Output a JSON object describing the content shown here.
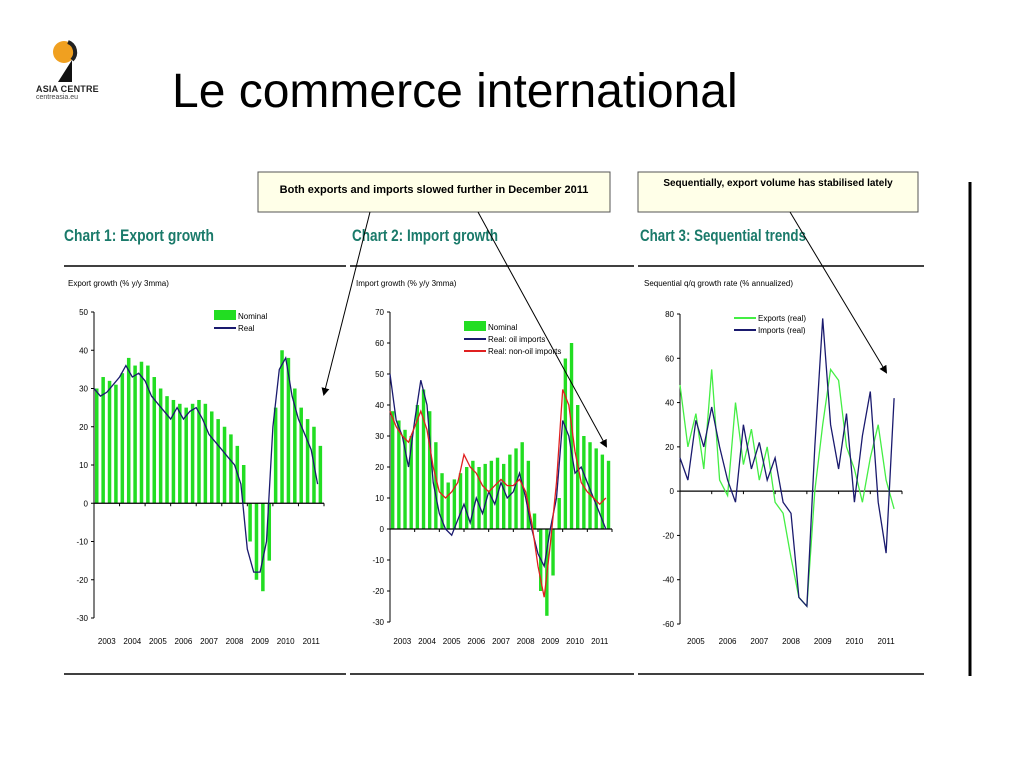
{
  "slide": {
    "title": "Le commerce international",
    "logo_text": "ASIA CENTRE",
    "logo_sub": "centreasia.eu"
  },
  "callouts": [
    {
      "text": "Both exports and imports slowed further in December 2011"
    },
    {
      "text": "Sequentially, export volume has stabilised lately"
    }
  ],
  "chart_data": [
    {
      "type": "bar",
      "title": "Chart 1: Export growth",
      "subtitle": "Export growth (% y/y 3mma)",
      "ylim": [
        -30,
        50
      ],
      "yticks": [
        50,
        40,
        30,
        20,
        10,
        0,
        -10,
        -20,
        -30
      ],
      "xticks": [
        "2003",
        "2004",
        "2005",
        "2006",
        "2007",
        "2008",
        "2009",
        "2010",
        "2011"
      ],
      "x_range": [
        2003,
        2012
      ],
      "legend": {
        "placement": "top-right"
      },
      "series": [
        {
          "name": "Nominal",
          "style": "bar",
          "color": "#22dd22",
          "points": [
            [
              2003.0,
              30
            ],
            [
              2003.25,
              33
            ],
            [
              2003.5,
              32
            ],
            [
              2003.75,
              31
            ],
            [
              2004.0,
              34
            ],
            [
              2004.25,
              38
            ],
            [
              2004.5,
              36
            ],
            [
              2004.75,
              37
            ],
            [
              2005.0,
              36
            ],
            [
              2005.25,
              33
            ],
            [
              2005.5,
              30
            ],
            [
              2005.75,
              28
            ],
            [
              2006.0,
              27
            ],
            [
              2006.25,
              26
            ],
            [
              2006.5,
              25
            ],
            [
              2006.75,
              26
            ],
            [
              2007.0,
              27
            ],
            [
              2007.25,
              26
            ],
            [
              2007.5,
              24
            ],
            [
              2007.75,
              22
            ],
            [
              2008.0,
              20
            ],
            [
              2008.25,
              18
            ],
            [
              2008.5,
              15
            ],
            [
              2008.75,
              10
            ],
            [
              2009.0,
              -10
            ],
            [
              2009.25,
              -20
            ],
            [
              2009.5,
              -23
            ],
            [
              2009.75,
              -15
            ],
            [
              2010.0,
              25
            ],
            [
              2010.25,
              40
            ],
            [
              2010.5,
              38
            ],
            [
              2010.75,
              30
            ],
            [
              2011.0,
              25
            ],
            [
              2011.25,
              22
            ],
            [
              2011.5,
              20
            ],
            [
              2011.75,
              15
            ]
          ]
        },
        {
          "name": "Real",
          "style": "line",
          "color": "#1a1a6e",
          "points": [
            [
              2003.0,
              30
            ],
            [
              2003.25,
              28
            ],
            [
              2003.5,
              29
            ],
            [
              2003.75,
              31
            ],
            [
              2004.0,
              33
            ],
            [
              2004.25,
              36
            ],
            [
              2004.5,
              33
            ],
            [
              2004.75,
              34
            ],
            [
              2005.0,
              32
            ],
            [
              2005.25,
              28
            ],
            [
              2005.5,
              26
            ],
            [
              2005.75,
              24
            ],
            [
              2006.0,
              22
            ],
            [
              2006.25,
              25
            ],
            [
              2006.5,
              22
            ],
            [
              2006.75,
              24
            ],
            [
              2007.0,
              25
            ],
            [
              2007.25,
              22
            ],
            [
              2007.5,
              18
            ],
            [
              2007.75,
              16
            ],
            [
              2008.0,
              14
            ],
            [
              2008.25,
              12
            ],
            [
              2008.5,
              10
            ],
            [
              2008.75,
              5
            ],
            [
              2009.0,
              -12
            ],
            [
              2009.25,
              -18
            ],
            [
              2009.5,
              -18
            ],
            [
              2009.75,
              -10
            ],
            [
              2010.0,
              20
            ],
            [
              2010.25,
              35
            ],
            [
              2010.5,
              38
            ],
            [
              2010.75,
              28
            ],
            [
              2011.0,
              22
            ],
            [
              2011.25,
              18
            ],
            [
              2011.5,
              14
            ],
            [
              2011.75,
              5
            ]
          ]
        }
      ]
    },
    {
      "type": "bar",
      "title": "Chart 2: Import growth",
      "subtitle": "Import growth (% y/y 3mma)",
      "ylim": [
        -30,
        70
      ],
      "yticks": [
        70,
        60,
        50,
        40,
        30,
        20,
        10,
        0,
        -10,
        -20,
        -30
      ],
      "xticks": [
        "2003",
        "2004",
        "2005",
        "2006",
        "2007",
        "2008",
        "2009",
        "2010",
        "2011"
      ],
      "x_range": [
        2003,
        2012
      ],
      "legend": {
        "placement": "top-right"
      },
      "series": [
        {
          "name": "Nominal",
          "style": "bar",
          "color": "#22dd22",
          "points": [
            [
              2003.0,
              38
            ],
            [
              2003.25,
              35
            ],
            [
              2003.5,
              32
            ],
            [
              2003.75,
              30
            ],
            [
              2004.0,
              40
            ],
            [
              2004.25,
              45
            ],
            [
              2004.5,
              38
            ],
            [
              2004.75,
              28
            ],
            [
              2005.0,
              18
            ],
            [
              2005.25,
              15
            ],
            [
              2005.5,
              16
            ],
            [
              2005.75,
              18
            ],
            [
              2006.0,
              20
            ],
            [
              2006.25,
              22
            ],
            [
              2006.5,
              20
            ],
            [
              2006.75,
              21
            ],
            [
              2007.0,
              22
            ],
            [
              2007.25,
              23
            ],
            [
              2007.5,
              21
            ],
            [
              2007.75,
              24
            ],
            [
              2008.0,
              26
            ],
            [
              2008.25,
              28
            ],
            [
              2008.5,
              22
            ],
            [
              2008.75,
              5
            ],
            [
              2009.0,
              -20
            ],
            [
              2009.25,
              -28
            ],
            [
              2009.5,
              -15
            ],
            [
              2009.75,
              10
            ],
            [
              2010.0,
              55
            ],
            [
              2010.25,
              60
            ],
            [
              2010.5,
              40
            ],
            [
              2010.75,
              30
            ],
            [
              2011.0,
              28
            ],
            [
              2011.25,
              26
            ],
            [
              2011.5,
              24
            ],
            [
              2011.75,
              22
            ]
          ]
        },
        {
          "name": "Real: oil imports",
          "style": "line",
          "color": "#1a1a6e",
          "points": [
            [
              2003.0,
              50
            ],
            [
              2003.25,
              35
            ],
            [
              2003.5,
              30
            ],
            [
              2003.75,
              20
            ],
            [
              2004.0,
              35
            ],
            [
              2004.25,
              48
            ],
            [
              2004.5,
              40
            ],
            [
              2004.75,
              15
            ],
            [
              2005.0,
              5
            ],
            [
              2005.25,
              0
            ],
            [
              2005.5,
              -2
            ],
            [
              2005.75,
              3
            ],
            [
              2006.0,
              8
            ],
            [
              2006.25,
              2
            ],
            [
              2006.5,
              10
            ],
            [
              2006.75,
              5
            ],
            [
              2007.0,
              12
            ],
            [
              2007.25,
              8
            ],
            [
              2007.5,
              15
            ],
            [
              2007.75,
              10
            ],
            [
              2008.0,
              12
            ],
            [
              2008.25,
              18
            ],
            [
              2008.5,
              10
            ],
            [
              2008.75,
              0
            ],
            [
              2009.0,
              -8
            ],
            [
              2009.25,
              -12
            ],
            [
              2009.5,
              0
            ],
            [
              2009.75,
              10
            ],
            [
              2010.0,
              35
            ],
            [
              2010.25,
              30
            ],
            [
              2010.5,
              18
            ],
            [
              2010.75,
              20
            ],
            [
              2011.0,
              15
            ],
            [
              2011.25,
              10
            ],
            [
              2011.5,
              5
            ],
            [
              2011.75,
              0
            ]
          ]
        },
        {
          "name": "Real: non-oil imports",
          "style": "line",
          "color": "#e02020",
          "points": [
            [
              2003.0,
              38
            ],
            [
              2003.25,
              33
            ],
            [
              2003.5,
              30
            ],
            [
              2003.75,
              28
            ],
            [
              2004.0,
              33
            ],
            [
              2004.25,
              38
            ],
            [
              2004.5,
              32
            ],
            [
              2004.75,
              20
            ],
            [
              2005.0,
              12
            ],
            [
              2005.25,
              10
            ],
            [
              2005.5,
              12
            ],
            [
              2005.75,
              15
            ],
            [
              2006.0,
              24
            ],
            [
              2006.25,
              20
            ],
            [
              2006.5,
              18
            ],
            [
              2006.75,
              14
            ],
            [
              2007.0,
              12
            ],
            [
              2007.25,
              14
            ],
            [
              2007.5,
              16
            ],
            [
              2007.75,
              14
            ],
            [
              2008.0,
              14
            ],
            [
              2008.25,
              16
            ],
            [
              2008.5,
              12
            ],
            [
              2008.75,
              2
            ],
            [
              2009.0,
              -12
            ],
            [
              2009.25,
              -22
            ],
            [
              2009.5,
              -5
            ],
            [
              2009.75,
              15
            ],
            [
              2010.0,
              45
            ],
            [
              2010.25,
              40
            ],
            [
              2010.5,
              25
            ],
            [
              2010.75,
              15
            ],
            [
              2011.0,
              12
            ],
            [
              2011.25,
              10
            ],
            [
              2011.5,
              8
            ],
            [
              2011.75,
              10
            ]
          ]
        }
      ]
    },
    {
      "type": "line",
      "title": "Chart 3: Sequential trends",
      "subtitle": "Sequential q/q growth rate (% annualized)",
      "ylim": [
        -60,
        80
      ],
      "yticks": [
        80,
        60,
        40,
        20,
        0,
        -20,
        -40,
        -60
      ],
      "xticks": [
        "2005",
        "2006",
        "2007",
        "2008",
        "2009",
        "2010",
        "2011"
      ],
      "x_range": [
        2005,
        2012
      ],
      "legend": {
        "placement": "top-right"
      },
      "series": [
        {
          "name": "Exports (real)",
          "style": "line",
          "color": "#44ee44",
          "points": [
            [
              2005.0,
              48
            ],
            [
              2005.25,
              20
            ],
            [
              2005.5,
              35
            ],
            [
              2005.75,
              10
            ],
            [
              2006.0,
              55
            ],
            [
              2006.25,
              5
            ],
            [
              2006.5,
              -2
            ],
            [
              2006.75,
              40
            ],
            [
              2007.0,
              12
            ],
            [
              2007.25,
              28
            ],
            [
              2007.5,
              5
            ],
            [
              2007.75,
              20
            ],
            [
              2008.0,
              -5
            ],
            [
              2008.25,
              -10
            ],
            [
              2008.5,
              -30
            ],
            [
              2008.75,
              -48
            ],
            [
              2009.0,
              -52
            ],
            [
              2009.25,
              0
            ],
            [
              2009.5,
              30
            ],
            [
              2009.75,
              55
            ],
            [
              2010.0,
              50
            ],
            [
              2010.25,
              20
            ],
            [
              2010.5,
              10
            ],
            [
              2010.75,
              -5
            ],
            [
              2011.0,
              15
            ],
            [
              2011.25,
              30
            ],
            [
              2011.5,
              5
            ],
            [
              2011.75,
              -8
            ]
          ]
        },
        {
          "name": "Imports (real)",
          "style": "line",
          "color": "#1a1a6e",
          "points": [
            [
              2005.0,
              15
            ],
            [
              2005.25,
              5
            ],
            [
              2005.5,
              32
            ],
            [
              2005.75,
              20
            ],
            [
              2006.0,
              38
            ],
            [
              2006.25,
              20
            ],
            [
              2006.5,
              5
            ],
            [
              2006.75,
              -5
            ],
            [
              2007.0,
              30
            ],
            [
              2007.25,
              10
            ],
            [
              2007.5,
              22
            ],
            [
              2007.75,
              5
            ],
            [
              2008.0,
              15
            ],
            [
              2008.25,
              -5
            ],
            [
              2008.5,
              -10
            ],
            [
              2008.75,
              -48
            ],
            [
              2009.0,
              -52
            ],
            [
              2009.25,
              20
            ],
            [
              2009.5,
              78
            ],
            [
              2009.75,
              30
            ],
            [
              2010.0,
              10
            ],
            [
              2010.25,
              35
            ],
            [
              2010.5,
              -5
            ],
            [
              2010.75,
              25
            ],
            [
              2011.0,
              45
            ],
            [
              2011.25,
              -5
            ],
            [
              2011.5,
              -28
            ],
            [
              2011.75,
              42
            ]
          ]
        }
      ]
    }
  ]
}
